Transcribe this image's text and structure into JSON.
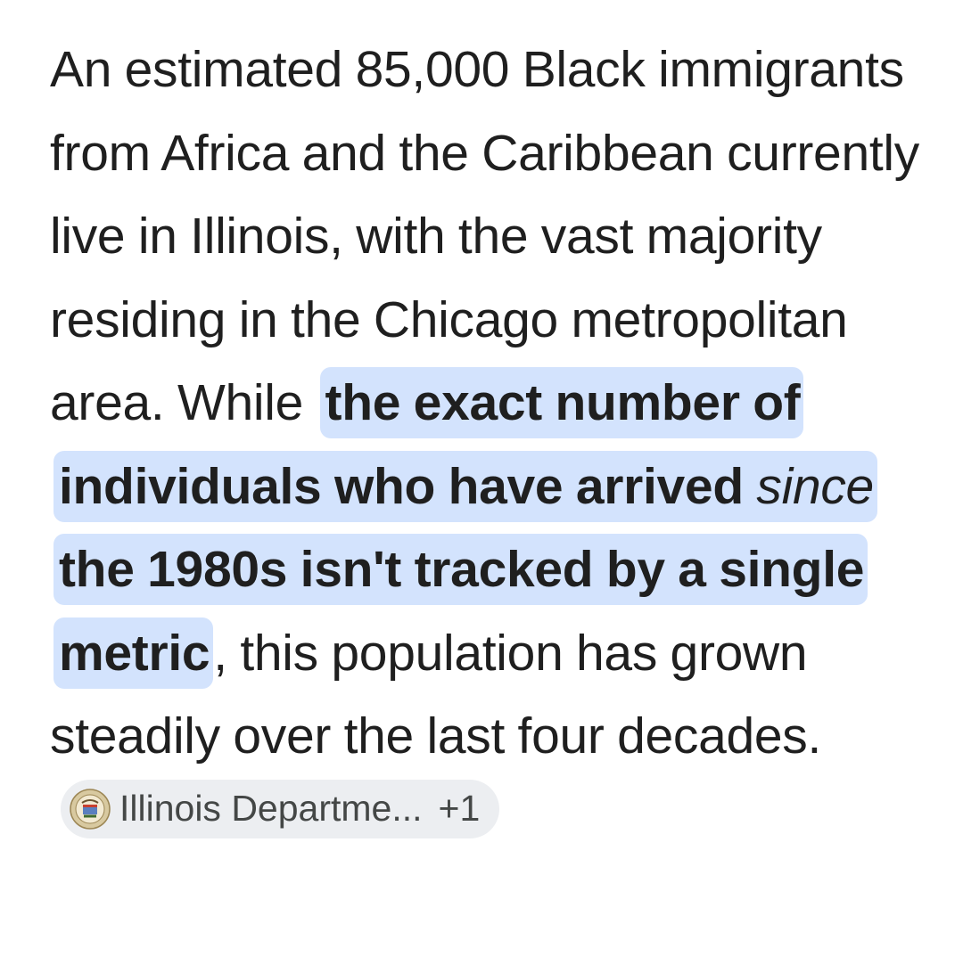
{
  "answer": {
    "text_before": "An estimated 85,000 Black immigrants from Africa and the Caribbean currently live in Illinois, with the vast majority residing in the Chicago metropolitan area. While ",
    "highlight_part1": "the exact number of individuals who have arrived ",
    "highlight_emphasis": "since",
    "highlight_part2": " the 1980s isn't tracked by a single metric",
    "text_after": ", this population has grown steadily over the last four decades.",
    "highlight_color": "#d3e3fd"
  },
  "source_chip": {
    "label": "Illinois Departme...",
    "extra_count": "+1",
    "icon": "state-seal-icon",
    "background": "#eceef1"
  }
}
